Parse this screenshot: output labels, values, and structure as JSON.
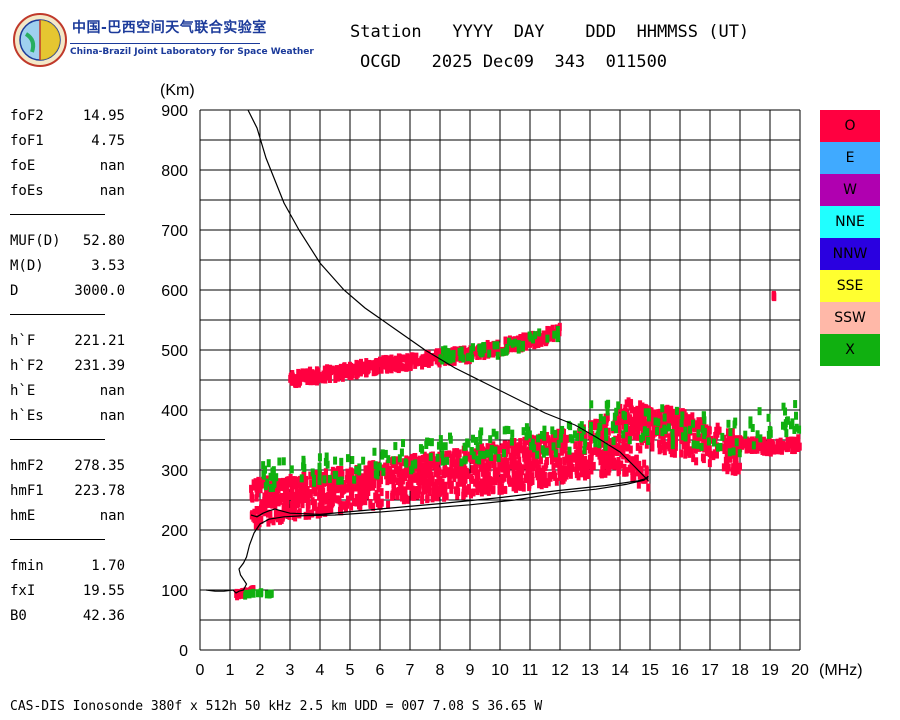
{
  "header": {
    "org_cn": "中国-巴西空间天气联合实验室",
    "org_en": "China-Brazil Joint Laboratory for Space Weather",
    "line1": "Station   YYYY  DAY    DDD  HHMMSS (UT)",
    "line2": "OCGD   2025 Dec09  343  011500"
  },
  "params": {
    "group1": [
      {
        "name": "foF2",
        "value": "14.95"
      },
      {
        "name": "foF1",
        "value": "4.75"
      },
      {
        "name": "foE",
        "value": "nan"
      },
      {
        "name": "foEs",
        "value": "nan"
      }
    ],
    "group2": [
      {
        "name": "MUF(D)",
        "value": "52.80"
      },
      {
        "name": "M(D)",
        "value": "3.53"
      },
      {
        "name": "D",
        "value": "3000.0"
      }
    ],
    "group3": [
      {
        "name": "h`F",
        "value": "221.21"
      },
      {
        "name": "h`F2",
        "value": "231.39"
      },
      {
        "name": "h`E",
        "value": "nan"
      },
      {
        "name": "h`Es",
        "value": "nan"
      }
    ],
    "group4": [
      {
        "name": "hmF2",
        "value": "278.35"
      },
      {
        "name": "hmF1",
        "value": "223.78"
      },
      {
        "name": "hmE",
        "value": "nan"
      }
    ],
    "group5": [
      {
        "name": "fmin",
        "value": "1.70"
      },
      {
        "name": "fxI",
        "value": "19.55"
      },
      {
        "name": "B0",
        "value": "42.36"
      }
    ]
  },
  "legend": [
    {
      "label": "O",
      "color": "#ff0040"
    },
    {
      "label": "E",
      "color": "#40aaff"
    },
    {
      "label": "W",
      "color": "#b000b0"
    },
    {
      "label": "NNE",
      "color": "#20ffff"
    },
    {
      "label": "NNW",
      "color": "#2a00e0"
    },
    {
      "label": "SSE",
      "color": "#ffff30"
    },
    {
      "label": "SSW",
      "color": "#ffb8a8"
    },
    {
      "label": "X",
      "color": "#10b010"
    }
  ],
  "footer": "CAS-DIS Ionosonde 380f x 512h 50 kHz 2.5 km UDD = 007 7.08 S 36.65 W",
  "chart_data": {
    "type": "scatter",
    "xlabel": "(MHz)",
    "ylabel": "(Km)",
    "xlim": [
      0,
      20
    ],
    "ylim": [
      0,
      900
    ],
    "xticks": [
      0,
      1,
      2,
      3,
      4,
      5,
      6,
      7,
      8,
      9,
      10,
      11,
      12,
      13,
      14,
      15,
      16,
      17,
      18,
      19,
      20
    ],
    "yticks": [
      0,
      100,
      200,
      300,
      400,
      500,
      600,
      700,
      800,
      900
    ],
    "grid": true,
    "series": [
      {
        "name": "O",
        "color": "#ff0040",
        "traces": [
          {
            "x": [
              1.7,
              3,
              4,
              5,
              6,
              7,
              8,
              9,
              10,
              11,
              12,
              13,
              14,
              14.95
            ],
            "y": [
              225,
              240,
              248,
              255,
              262,
              268,
              275,
              280,
              287,
              293,
              302,
              312,
              318,
              285
            ],
            "spread": 22
          },
          {
            "x": [
              1.7,
              2.5,
              4,
              6,
              8,
              10,
              12,
              12.3
            ],
            "y": [
              270,
              265,
              278,
              295,
              310,
              325,
              345,
              360
            ],
            "spread": 18
          },
          {
            "x": [
              12.5,
              13,
              14,
              15,
              16,
              17,
              18
            ],
            "y": [
              330,
              345,
              360,
              370,
              360,
              340,
              330
            ],
            "spread": 35
          },
          {
            "x": [
              14,
              15,
              16,
              17
            ],
            "y": [
              395,
              380,
              375,
              350
            ],
            "spread": 25
          },
          {
            "x": [
              17.5,
              18.5,
              19.5,
              20
            ],
            "y": [
              345,
              340,
              338,
              345
            ],
            "spread": 10
          },
          {
            "x": [
              3,
              4,
              5,
              6,
              7,
              8,
              9,
              10,
              11,
              12
            ],
            "y": [
              452,
              458,
              465,
              475,
              480,
              487,
              493,
              505,
              515,
              530
            ],
            "spread": 10
          },
          {
            "x": [
              1.2,
              1.5,
              1.8
            ],
            "y": [
              92,
              95,
              100
            ],
            "spread": 3
          },
          {
            "x": [
              19.1
            ],
            "y": [
              590
            ],
            "spread": 2
          }
        ]
      },
      {
        "name": "X",
        "color": "#10b010",
        "traces": [
          {
            "x": [
              2,
              4,
              6,
              8,
              10,
              12,
              14
            ],
            "y": [
              285,
              300,
              315,
              328,
              345,
              352,
              360
            ],
            "spread": 25
          },
          {
            "x": [
              13,
              14,
              15,
              16,
              17,
              18,
              19,
              20
            ],
            "y": [
              390,
              380,
              375,
              370,
              360,
              350,
              380,
              395
            ],
            "spread": 30
          },
          {
            "x": [
              8,
              10,
              12
            ],
            "y": [
              490,
              500,
              530
            ],
            "spread": 10
          },
          {
            "x": [
              1.5,
              1.8,
              2.4
            ],
            "y": [
              92,
              95,
              94
            ],
            "spread": 3
          }
        ]
      }
    ],
    "virtual_height_trace": [
      [
        0.2,
        100
      ],
      [
        0.5,
        98
      ],
      [
        0.8,
        98
      ],
      [
        1.1,
        100
      ],
      [
        1.2,
        95
      ],
      [
        1.3,
        98
      ],
      [
        1.45,
        100
      ],
      [
        1.55,
        110
      ],
      [
        1.35,
        125
      ],
      [
        1.3,
        135
      ],
      [
        1.45,
        145
      ],
      [
        1.55,
        155
      ],
      [
        1.65,
        175
      ],
      [
        1.8,
        195
      ],
      [
        2.0,
        210
      ],
      [
        2.3,
        218
      ],
      [
        2.8,
        222
      ],
      [
        3.5,
        224
      ],
      [
        4.5,
        225
      ],
      [
        6,
        230
      ],
      [
        7.5,
        236
      ],
      [
        9,
        242
      ],
      [
        10.5,
        250
      ],
      [
        12,
        262
      ],
      [
        13.2,
        268
      ],
      [
        14.2,
        276
      ],
      [
        14.8,
        283
      ],
      [
        14.95,
        290
      ]
    ],
    "true_height_trace": [
      [
        14.95,
        282
      ],
      [
        14.5,
        305
      ],
      [
        14,
        330
      ],
      [
        13.2,
        355
      ],
      [
        12.5,
        375
      ],
      [
        11.5,
        395
      ],
      [
        10.5,
        420
      ],
      [
        9.5,
        445
      ],
      [
        8.5,
        470
      ],
      [
        7.5,
        500
      ],
      [
        6.5,
        535
      ],
      [
        5.5,
        570
      ],
      [
        4.8,
        600
      ],
      [
        4.0,
        645
      ],
      [
        3.3,
        700
      ],
      [
        2.8,
        745
      ],
      [
        2.2,
        820
      ],
      [
        1.9,
        870
      ],
      [
        1.6,
        900
      ]
    ],
    "profile_lower_trace": [
      [
        1.7,
        225
      ],
      [
        1.9,
        222
      ],
      [
        2.1,
        228
      ],
      [
        2.3,
        232
      ],
      [
        2.5,
        235
      ],
      [
        2.7,
        232
      ],
      [
        3.0,
        228
      ],
      [
        4,
        226
      ],
      [
        6,
        235
      ],
      [
        8,
        244
      ],
      [
        10,
        254
      ],
      [
        12,
        266
      ],
      [
        13.5,
        274
      ],
      [
        14.6,
        282
      ],
      [
        14.95,
        287
      ]
    ]
  }
}
